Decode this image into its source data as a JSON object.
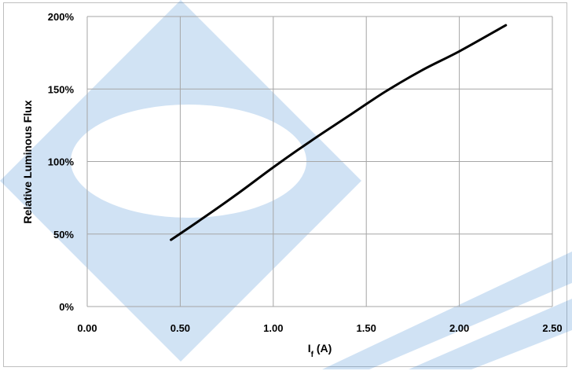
{
  "chart_data": {
    "type": "line",
    "xlabel_main": "I",
    "xlabel_sub": "f",
    "xlabel_unit": " (A)",
    "ylabel": "Relative Luminous Flux",
    "xlim": [
      0,
      2.5
    ],
    "ylim": [
      0,
      200
    ],
    "x_ticks": [
      "0.00",
      "0.50",
      "1.00",
      "1.50",
      "2.00",
      "2.50"
    ],
    "y_ticks": [
      "0%",
      "50%",
      "100%",
      "150%",
      "200%"
    ],
    "grid": true,
    "series": [
      {
        "color": "#000000",
        "x": [
          0.45,
          0.6,
          0.8,
          1.0,
          1.2,
          1.4,
          1.6,
          1.8,
          2.0,
          2.25
        ],
        "y": [
          46,
          59,
          77,
          96,
          114,
          131,
          148,
          163,
          176,
          194
        ]
      }
    ]
  },
  "watermark": {
    "color": "#2f7fcf"
  }
}
